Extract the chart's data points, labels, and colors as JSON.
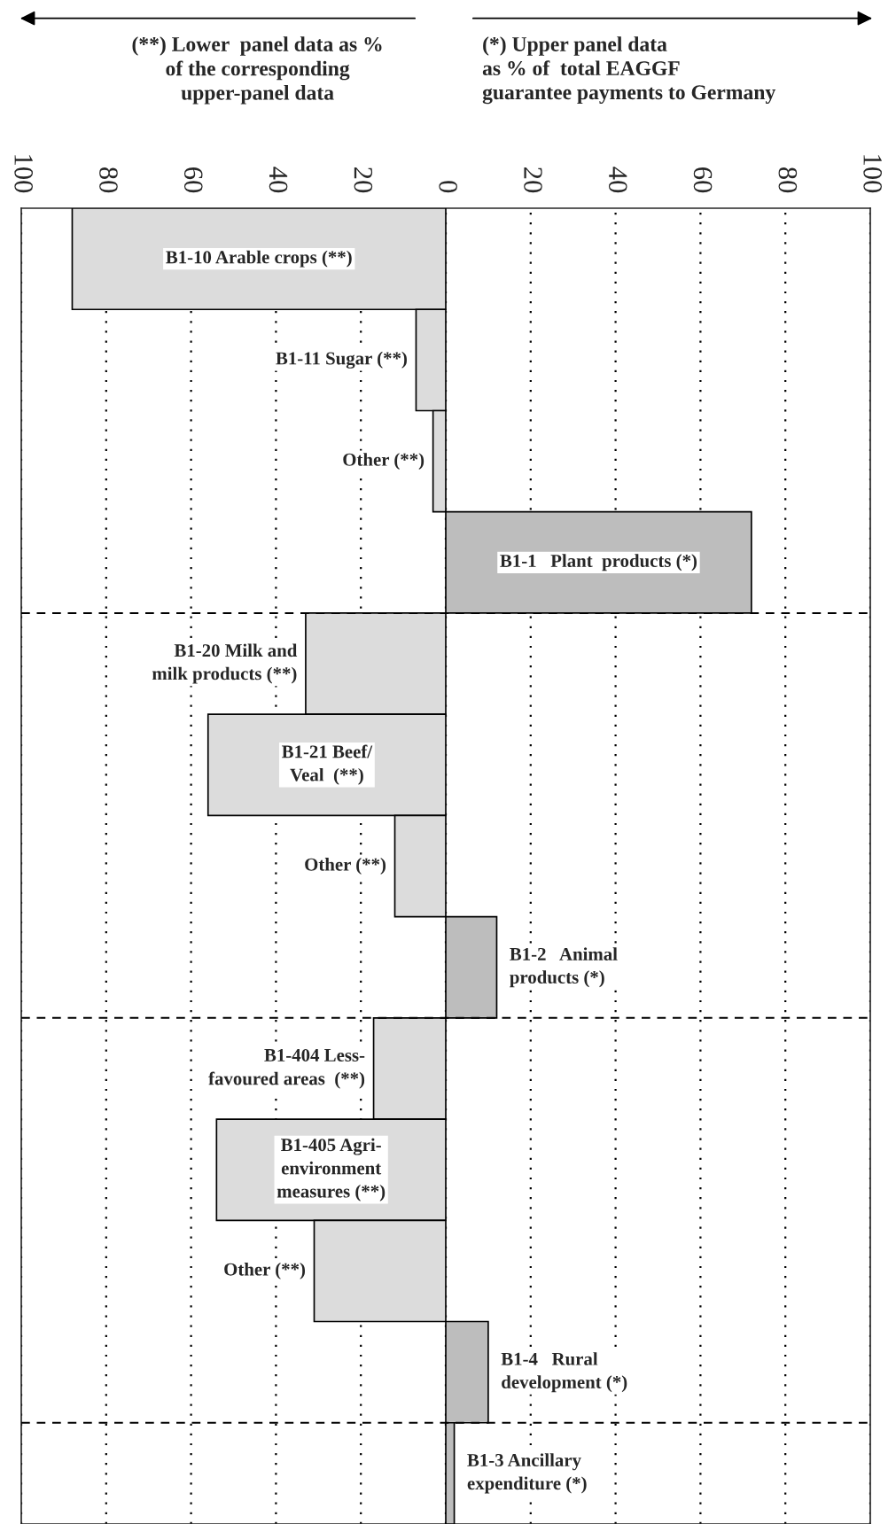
{
  "chart_data": {
    "type": "bar",
    "orientation": "horizontal",
    "categories": [
      "B1-10 Arable crops (**)",
      "B1-11 Sugar (**)",
      "Other (**)",
      "B1-1   Plant  products (*)",
      "B1-20 Milk and\nmilk products (**)",
      "B1-21 Beef/\nVeal  (**)",
      "Other (**)",
      "B1-2   Animal\nproducts (*)",
      "B1-404 Less-\nfavoured areas  (**)",
      "B1-405 Agri-\nenvironment\nmeasures (**)",
      "Other (**)",
      "B1-4   Rural\ndevelopment (*)",
      "B1-3 Ancillary\nexpenditure (*)"
    ],
    "values": [
      -88,
      -7,
      -3,
      72,
      -33,
      -56,
      -12,
      12,
      -17,
      -54,
      -31,
      10,
      2
    ],
    "colors": [
      "#dcdcdc",
      "#dcdcdc",
      "#dcdcdc",
      "#bdbdbd",
      "#dcdcdc",
      "#dcdcdc",
      "#dcdcdc",
      "#bdbdbd",
      "#dcdcdc",
      "#dcdcdc",
      "#dcdcdc",
      "#bdbdbd",
      "#bdbdbd"
    ],
    "xlim": [
      -100,
      100
    ],
    "xticks": [
      {
        "value": -100,
        "label": "100"
      },
      {
        "value": -80,
        "label": "80"
      },
      {
        "value": -60,
        "label": "60"
      },
      {
        "value": -40,
        "label": "40"
      },
      {
        "value": -20,
        "label": "20"
      },
      0,
      20,
      40,
      60,
      80,
      100
    ],
    "grid": "x",
    "annotations": [
      "(**) Lower  panel data as %\nof the corresponding\nupper-panel data",
      "(*) Upper panel data\nas % of  total EAGGF\nguarantee payments to Germany"
    ]
  }
}
